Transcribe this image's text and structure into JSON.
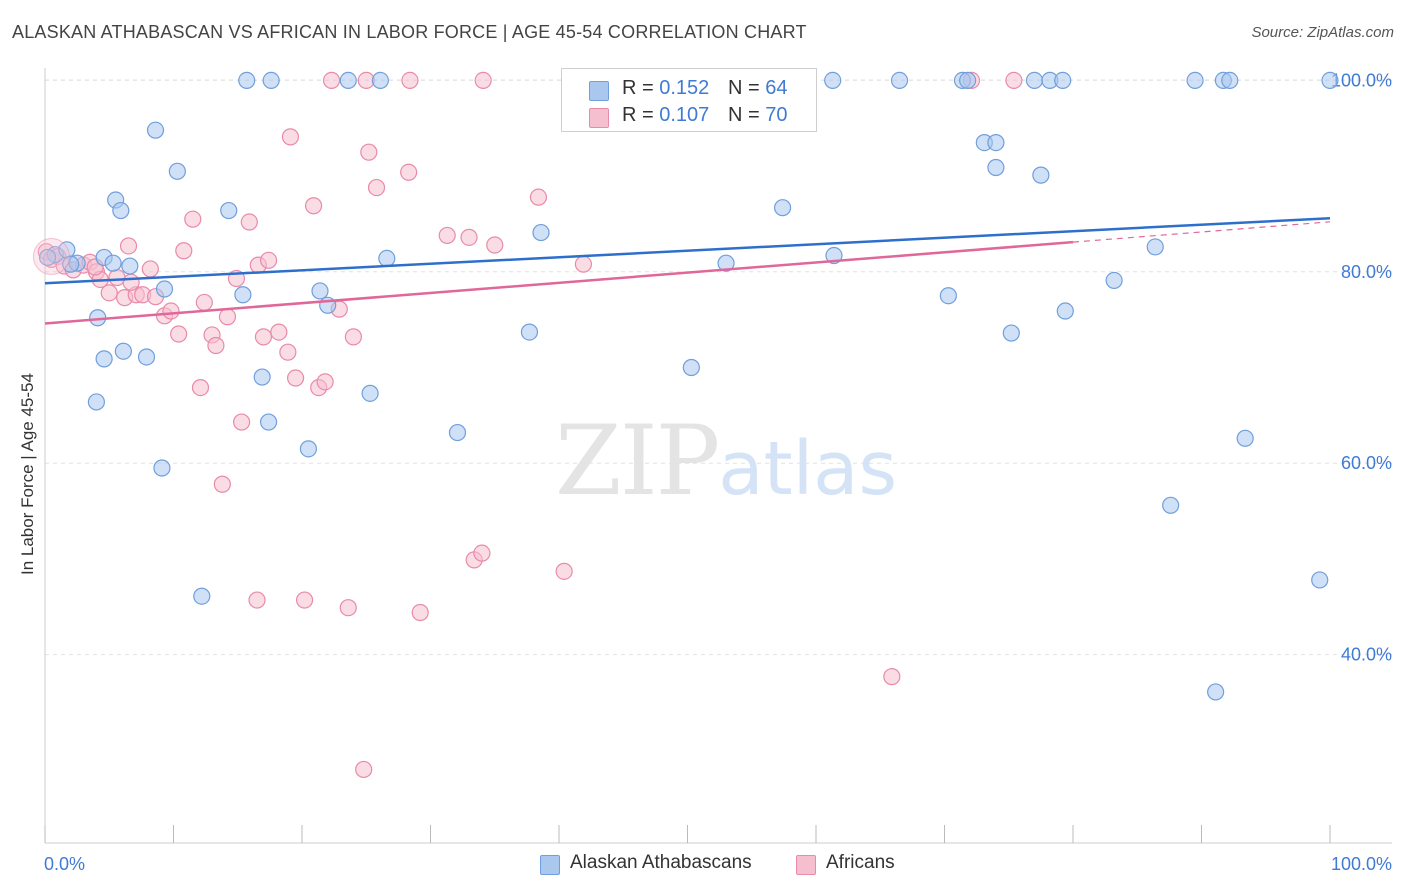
{
  "title": "ALASKAN ATHABASCAN VS AFRICAN IN LABOR FORCE | AGE 45-54 CORRELATION CHART",
  "source": "Source: ZipAtlas.com",
  "watermark": {
    "zip": "ZIP",
    "atlas": "atlas"
  },
  "legend_box": {
    "rows": [
      {
        "r_label": "R = ",
        "r_value": "0.152",
        "n_label": "N = ",
        "n_value": "64"
      },
      {
        "r_label": "R = ",
        "r_value": "0.107",
        "n_label": "N = ",
        "n_value": "70"
      }
    ]
  },
  "bottom_legend": [
    "Alaskan Athabascans",
    "Africans"
  ],
  "colors": {
    "blue_fill": "#aac7ee",
    "blue_stroke": "#6f9fdc",
    "blue_line": "#2f6fcc",
    "pink_fill": "#f6bfd0",
    "pink_stroke": "#e98aa9",
    "pink_line": "#e0679a",
    "tick_label": "#3f7bd4",
    "grid": "#e2e2e2"
  },
  "chart_data": {
    "type": "scatter",
    "title": "ALASKAN ATHABASCAN VS AFRICAN IN LABOR FORCE | AGE 45-54 CORRELATION CHART",
    "xlabel": "",
    "ylabel": "In Labor Force | Age 45-54",
    "xlim": [
      0,
      100
    ],
    "ylim": [
      20,
      102
    ],
    "x_tick_labels": [
      "0.0%",
      "100.0%"
    ],
    "y_ticks": [
      40,
      60,
      80,
      100
    ],
    "y_tick_labels": [
      "40.0%",
      "60.0%",
      "80.0%",
      "100.0%"
    ],
    "grid": true,
    "legend_placement": "top-center",
    "series": [
      {
        "name": "Alaskan Athabascans",
        "r": 0.152,
        "n": 64,
        "trend": {
          "x": [
            0,
            100
          ],
          "y": [
            78.8,
            85.6
          ]
        },
        "points": [
          [
            0.8,
            81.8
          ],
          [
            1.7,
            82.3
          ],
          [
            2.5,
            80.9
          ],
          [
            4.6,
            81.5
          ],
          [
            5.3,
            80.9
          ],
          [
            5.5,
            87.5
          ],
          [
            5.9,
            86.4
          ],
          [
            6.6,
            80.6
          ],
          [
            4.1,
            75.2
          ],
          [
            4.6,
            70.9
          ],
          [
            6.1,
            71.7
          ],
          [
            7.9,
            71.1
          ],
          [
            8.6,
            94.8
          ],
          [
            10.3,
            90.5
          ],
          [
            9.3,
            78.2
          ],
          [
            4.0,
            66.4
          ],
          [
            9.1,
            59.5
          ],
          [
            12.2,
            46.1
          ],
          [
            14.3,
            86.4
          ],
          [
            15.4,
            77.6
          ],
          [
            16.9,
            69.0
          ],
          [
            17.4,
            64.3
          ],
          [
            20.5,
            61.5
          ],
          [
            21.4,
            78.0
          ],
          [
            22.0,
            76.5
          ],
          [
            25.3,
            67.3
          ],
          [
            26.6,
            81.4
          ],
          [
            32.1,
            63.2
          ],
          [
            37.7,
            73.7
          ],
          [
            38.6,
            84.1
          ],
          [
            50.3,
            70.0
          ],
          [
            53.0,
            80.9
          ],
          [
            57.4,
            86.7
          ],
          [
            61.4,
            81.7
          ],
          [
            70.3,
            77.5
          ],
          [
            73.1,
            93.5
          ],
          [
            74.0,
            90.9
          ],
          [
            74.0,
            93.5
          ],
          [
            75.2,
            73.6
          ],
          [
            77.5,
            90.1
          ],
          [
            79.4,
            75.9
          ],
          [
            83.2,
            79.1
          ],
          [
            86.4,
            82.6
          ],
          [
            87.6,
            55.6
          ],
          [
            91.1,
            36.1
          ],
          [
            93.4,
            62.6
          ],
          [
            99.2,
            47.8
          ],
          [
            15.7,
            100
          ],
          [
            17.6,
            100
          ],
          [
            23.6,
            100
          ],
          [
            26.1,
            100
          ],
          [
            61.3,
            100
          ],
          [
            66.5,
            100
          ],
          [
            71.4,
            100
          ],
          [
            71.8,
            100
          ],
          [
            77.0,
            100
          ],
          [
            78.2,
            100
          ],
          [
            79.2,
            100
          ],
          [
            89.5,
            100
          ],
          [
            91.7,
            100
          ],
          [
            92.2,
            100
          ],
          [
            100,
            100
          ],
          [
            0.2,
            81.5
          ],
          [
            2.0,
            80.8
          ]
        ]
      },
      {
        "name": "Africans",
        "r": 0.107,
        "n": 70,
        "trend": {
          "x": [
            0,
            80
          ],
          "y": [
            74.6,
            83.1
          ]
        },
        "points": [
          [
            0.1,
            82.1
          ],
          [
            0.5,
            81.3
          ],
          [
            1.0,
            81.6
          ],
          [
            1.5,
            80.6
          ],
          [
            2.2,
            80.2
          ],
          [
            3.0,
            80.7
          ],
          [
            3.5,
            81.0
          ],
          [
            4.0,
            80.0
          ],
          [
            4.3,
            79.2
          ],
          [
            5.0,
            77.8
          ],
          [
            5.6,
            79.4
          ],
          [
            6.2,
            77.3
          ],
          [
            6.5,
            82.7
          ],
          [
            7.1,
            77.6
          ],
          [
            7.6,
            77.6
          ],
          [
            8.2,
            80.3
          ],
          [
            8.6,
            77.4
          ],
          [
            9.3,
            75.4
          ],
          [
            9.8,
            75.9
          ],
          [
            10.4,
            73.5
          ],
          [
            10.8,
            82.2
          ],
          [
            11.5,
            85.5
          ],
          [
            12.1,
            67.9
          ],
          [
            12.4,
            76.8
          ],
          [
            13.0,
            73.4
          ],
          [
            13.3,
            72.3
          ],
          [
            13.8,
            57.8
          ],
          [
            14.2,
            75.3
          ],
          [
            14.9,
            79.3
          ],
          [
            15.3,
            64.3
          ],
          [
            15.9,
            85.2
          ],
          [
            16.6,
            80.7
          ],
          [
            17.0,
            73.2
          ],
          [
            17.4,
            81.2
          ],
          [
            18.2,
            73.7
          ],
          [
            18.9,
            71.6
          ],
          [
            19.1,
            94.1
          ],
          [
            19.5,
            68.9
          ],
          [
            20.2,
            45.7
          ],
          [
            20.9,
            86.9
          ],
          [
            21.3,
            67.9
          ],
          [
            21.8,
            68.5
          ],
          [
            22.9,
            76.1
          ],
          [
            23.6,
            44.9
          ],
          [
            24.0,
            73.2
          ],
          [
            24.8,
            28.0
          ],
          [
            25.2,
            92.5
          ],
          [
            25.8,
            88.8
          ],
          [
            28.3,
            90.4
          ],
          [
            29.2,
            44.4
          ],
          [
            31.3,
            83.8
          ],
          [
            33.0,
            83.6
          ],
          [
            33.4,
            49.9
          ],
          [
            34.0,
            50.6
          ],
          [
            35.0,
            82.8
          ],
          [
            38.4,
            87.8
          ],
          [
            40.4,
            48.7
          ],
          [
            41.9,
            80.8
          ],
          [
            65.9,
            37.7
          ],
          [
            16.5,
            45.7
          ],
          [
            22.3,
            100
          ],
          [
            25.0,
            100
          ],
          [
            28.4,
            100
          ],
          [
            34.1,
            100
          ],
          [
            52.5,
            100
          ],
          [
            58.8,
            100
          ],
          [
            72.1,
            100
          ],
          [
            75.4,
            100
          ],
          [
            3.9,
            80.5
          ],
          [
            6.7,
            78.9
          ]
        ]
      }
    ]
  }
}
